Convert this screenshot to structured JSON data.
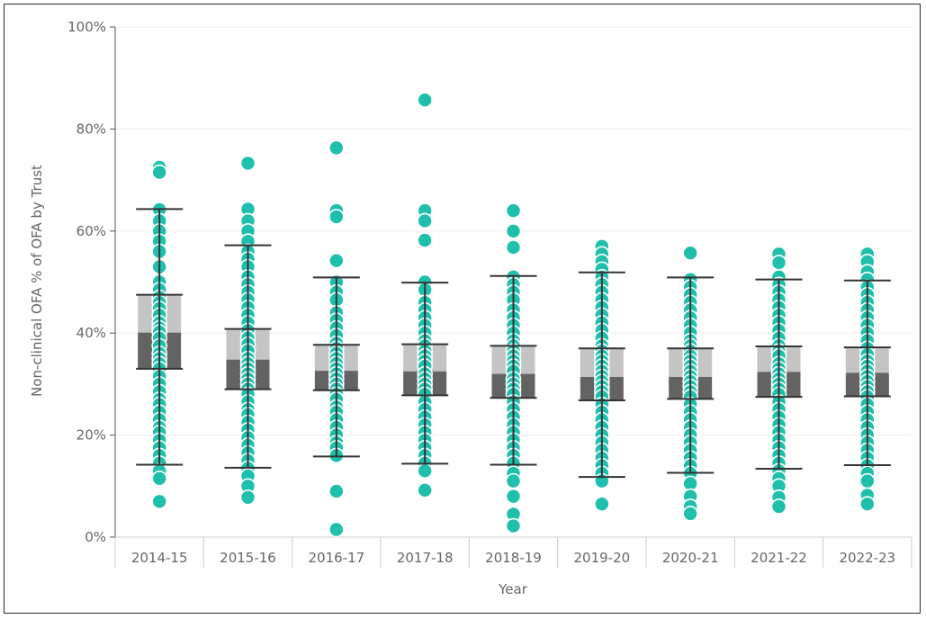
{
  "chart_data": {
    "type": "box",
    "xlabel": "Year",
    "ylabel": "Non-clinical OFA % of OFA by Trust",
    "ylim": [
      0,
      100
    ],
    "yticks": [
      "0%",
      "20%",
      "40%",
      "60%",
      "80%",
      "100%"
    ],
    "ytick_values": [
      0,
      20,
      40,
      60,
      80,
      100
    ],
    "grid": "horizontal",
    "colors": {
      "points": "#1fbfad",
      "box_upper": "#c4c4c4",
      "box_lower": "#636363",
      "whisker": "#333333",
      "grid": "#ececec",
      "axis": "#cccccc"
    },
    "categories": [
      "2014-15",
      "2015-16",
      "2016-17",
      "2017-18",
      "2018-19",
      "2019-20",
      "2020-21",
      "2021-22",
      "2022-23"
    ],
    "boxes": [
      {
        "whisker_low": 14.2,
        "q1": 33.0,
        "median": 40.1,
        "q3": 47.5,
        "whisker_high": 64.3
      },
      {
        "whisker_low": 13.6,
        "q1": 29.0,
        "median": 34.8,
        "q3": 40.8,
        "whisker_high": 57.2
      },
      {
        "whisker_low": 15.8,
        "q1": 28.8,
        "median": 32.6,
        "q3": 37.7,
        "whisker_high": 50.9
      },
      {
        "whisker_low": 14.4,
        "q1": 27.8,
        "median": 32.5,
        "q3": 37.8,
        "whisker_high": 49.9
      },
      {
        "whisker_low": 14.2,
        "q1": 27.3,
        "median": 32.0,
        "q3": 37.5,
        "whisker_high": 51.2
      },
      {
        "whisker_low": 11.8,
        "q1": 26.8,
        "median": 31.4,
        "q3": 37.0,
        "whisker_high": 51.9
      },
      {
        "whisker_low": 12.6,
        "q1": 27.1,
        "median": 31.4,
        "q3": 37.0,
        "whisker_high": 50.9
      },
      {
        "whisker_low": 13.4,
        "q1": 27.5,
        "median": 32.4,
        "q3": 37.4,
        "whisker_high": 50.5
      },
      {
        "whisker_low": 14.1,
        "q1": 27.6,
        "median": 32.2,
        "q3": 37.2,
        "whisker_high": 50.3
      }
    ],
    "points": [
      [
        72.5,
        71.5,
        64.2,
        62.0,
        60.0,
        58.0,
        56.0,
        53.0,
        50.0,
        48.5,
        47.0,
        46.0,
        44.8,
        43.5,
        42.0,
        41.0,
        40.2,
        39.0,
        37.5,
        36.0,
        35.0,
        34.0,
        33.0,
        31.5,
        30.0,
        28.5,
        27.0,
        26.0,
        24.5,
        23.0,
        21.5,
        20.5,
        19.0,
        17.5,
        16.0,
        14.5,
        13.0,
        11.5,
        7.0
      ],
      [
        73.3,
        64.3,
        62.0,
        60.0,
        58.0,
        56.0,
        54.5,
        53.0,
        51.0,
        49.5,
        48.0,
        46.5,
        45.0,
        43.5,
        42.0,
        40.5,
        39.0,
        37.8,
        36.5,
        35.0,
        34.0,
        33.0,
        32.0,
        31.0,
        30.0,
        29.0,
        28.0,
        26.5,
        25.0,
        24.0,
        22.5,
        21.0,
        19.5,
        18.0,
        16.5,
        15.0,
        13.5,
        12.0,
        10.0,
        7.8
      ],
      [
        76.3,
        64.0,
        62.8,
        54.2,
        50.0,
        48.0,
        46.5,
        44.0,
        42.5,
        41.0,
        39.5,
        38.0,
        37.0,
        36.0,
        35.0,
        34.0,
        33.0,
        32.0,
        31.0,
        30.0,
        29.0,
        28.0,
        27.0,
        25.5,
        24.5,
        23.0,
        21.5,
        20.0,
        18.5,
        17.5,
        16.0,
        9.0,
        1.5
      ],
      [
        85.7,
        64.0,
        62.0,
        58.2,
        50.0,
        48.5,
        46.0,
        44.5,
        43.0,
        41.5,
        40.0,
        38.5,
        37.5,
        36.5,
        35.5,
        34.5,
        33.5,
        32.0,
        31.0,
        30.0,
        29.0,
        28.0,
        26.5,
        25.0,
        23.5,
        22.0,
        20.5,
        19.0,
        17.5,
        16.0,
        14.5,
        13.0,
        9.2
      ],
      [
        64.0,
        60.0,
        56.8,
        51.0,
        49.5,
        48.0,
        46.5,
        44.5,
        43.0,
        41.5,
        40.0,
        38.5,
        37.5,
        36.5,
        35.5,
        34.5,
        33.5,
        32.5,
        31.0,
        30.0,
        29.0,
        28.0,
        26.5,
        25.0,
        23.5,
        22.0,
        20.5,
        19.0,
        17.5,
        16.0,
        14.5,
        12.5,
        11.0,
        8.0,
        4.5,
        2.2
      ],
      [
        57.0,
        55.5,
        54.0,
        52.5,
        51.0,
        49.5,
        48.0,
        46.5,
        45.0,
        43.5,
        42.0,
        40.5,
        39.0,
        37.5,
        36.5,
        35.5,
        34.5,
        33.5,
        32.5,
        31.5,
        30.5,
        29.5,
        28.5,
        27.5,
        26.0,
        24.5,
        23.0,
        21.5,
        20.0,
        18.5,
        17.0,
        15.5,
        14.0,
        12.5,
        11.0,
        6.5
      ],
      [
        55.7,
        50.5,
        49.0,
        47.5,
        46.0,
        44.5,
        43.0,
        41.5,
        40.0,
        38.5,
        37.5,
        36.5,
        35.5,
        34.5,
        33.5,
        32.5,
        31.5,
        30.5,
        29.5,
        28.5,
        27.5,
        26.0,
        24.5,
        23.0,
        21.5,
        20.0,
        18.5,
        17.0,
        15.5,
        14.0,
        12.5,
        10.5,
        8.0,
        6.0,
        4.6
      ],
      [
        55.5,
        53.8,
        51.0,
        49.5,
        48.0,
        46.5,
        45.0,
        43.5,
        42.0,
        40.5,
        39.0,
        37.5,
        36.5,
        35.5,
        34.0,
        33.0,
        32.0,
        31.0,
        30.0,
        29.0,
        28.0,
        26.5,
        25.0,
        23.5,
        22.0,
        20.5,
        19.0,
        17.5,
        16.0,
        14.5,
        13.0,
        11.5,
        10.0,
        7.8,
        6.0
      ],
      [
        55.5,
        54.0,
        52.0,
        50.5,
        49.0,
        47.5,
        46.0,
        44.5,
        43.0,
        41.5,
        40.0,
        38.5,
        37.0,
        35.8,
        34.5,
        33.5,
        32.5,
        31.5,
        30.5,
        29.5,
        28.5,
        27.5,
        26.0,
        24.5,
        23.0,
        21.5,
        20.0,
        18.5,
        17.0,
        15.5,
        14.0,
        12.5,
        11.0,
        8.2,
        6.5
      ]
    ]
  }
}
